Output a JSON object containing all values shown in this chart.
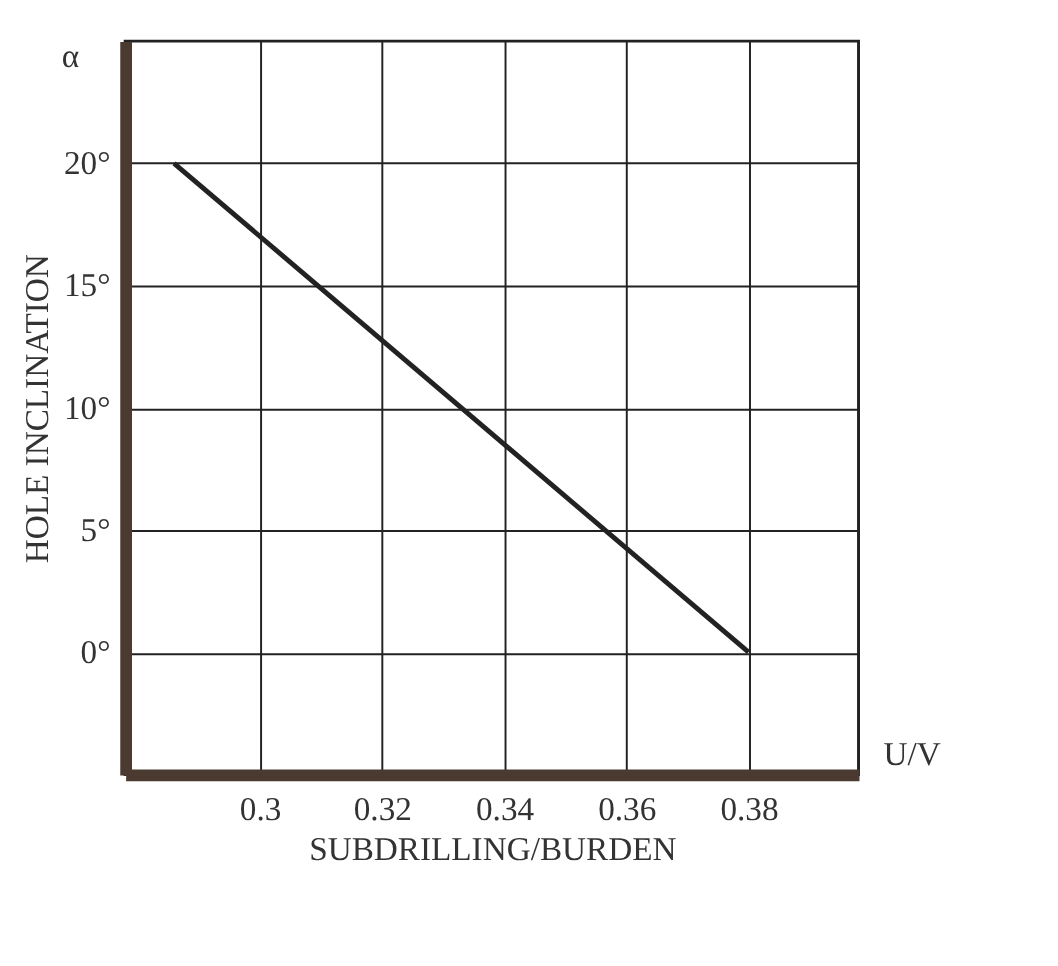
{
  "chart_data": {
    "type": "line",
    "xlabel": "SUBDRILLING/BURDEN",
    "ylabel": "HOLE INCLINATION",
    "x": [
      0.286,
      0.38
    ],
    "series": [
      {
        "color": "#222222",
        "values": [
          20,
          0
        ]
      }
    ],
    "xlim": [
      0.278,
      0.398
    ],
    "ylim": [
      -5,
      25
    ],
    "xticks": [
      {
        "value": 0.3,
        "label": "0.3"
      },
      0.32,
      0.34,
      0.36,
      0.38
    ],
    "yticks": [
      {
        "value": 0,
        "label": "0°"
      },
      {
        "value": 5,
        "label": "5°"
      },
      {
        "value": 10,
        "label": "10°"
      },
      {
        "value": 15,
        "label": "15°"
      },
      {
        "value": 20,
        "label": "20°"
      }
    ],
    "annotations": [
      "α",
      "U/V"
    ],
    "grid": true,
    "marker": "none",
    "line_style": "solid"
  }
}
